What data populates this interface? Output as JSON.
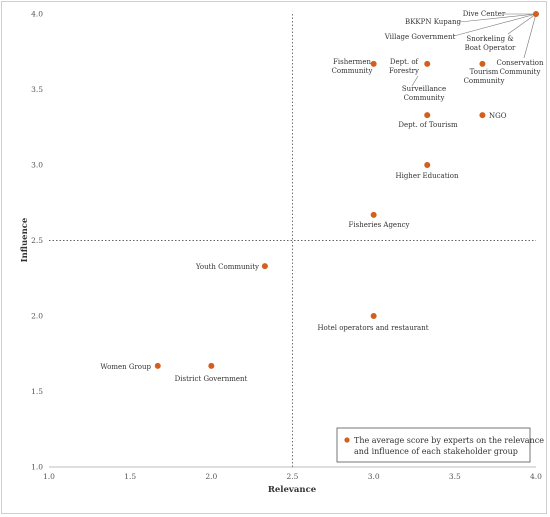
{
  "chart_data": {
    "type": "scatter",
    "title": "",
    "xlabel": "Relevance",
    "ylabel": "Influence",
    "xlim": [
      1.0,
      4.0
    ],
    "ylim": [
      1.0,
      4.0
    ],
    "x_ticks": [
      "1.0",
      "1.5",
      "2.0",
      "2.5",
      "3.0",
      "3.5",
      "4.0"
    ],
    "y_ticks": [
      "1.0",
      "1.5",
      "2.0",
      "2.5",
      "3.0",
      "3.5",
      "4.0"
    ],
    "quadrant_lines": {
      "x": 2.5,
      "y": 2.5
    },
    "grid": false,
    "marker_color": "#d35f1c",
    "legend": {
      "position": "bottom-right",
      "text": "The average score by experts on the relevance and influence of each stakeholder group"
    },
    "points": [
      {
        "label": "Dive Center",
        "x": 4.0,
        "y": 4.0
      },
      {
        "label": "BKKPN Kupang",
        "x": 4.0,
        "y": 4.0
      },
      {
        "label": "Village Government",
        "x": 4.0,
        "y": 4.0
      },
      {
        "label": "Snorkeling & Boat Operator",
        "x": 4.0,
        "y": 4.0
      },
      {
        "label": "Conservation Community",
        "x": 4.0,
        "y": 4.0
      },
      {
        "label": "Fishermen Community",
        "x": 3.0,
        "y": 3.67
      },
      {
        "label": "Dept. of Forestry",
        "x": 3.33,
        "y": 3.67
      },
      {
        "label": "Tourism Community",
        "x": 3.67,
        "y": 3.67
      },
      {
        "label": "Surveillance Community",
        "x": 3.33,
        "y": 3.67
      },
      {
        "label": "Dept. of Tourism",
        "x": 3.33,
        "y": 3.33
      },
      {
        "label": "NGO",
        "x": 3.67,
        "y": 3.33
      },
      {
        "label": "Higher Education",
        "x": 3.33,
        "y": 3.0
      },
      {
        "label": "Fisheries Agency",
        "x": 3.0,
        "y": 2.67
      },
      {
        "label": "Youth Community",
        "x": 2.33,
        "y": 2.33
      },
      {
        "label": "Hotel operators and restaurant",
        "x": 3.0,
        "y": 2.0
      },
      {
        "label": "Women Group",
        "x": 1.67,
        "y": 1.67
      },
      {
        "label": "District Government",
        "x": 2.0,
        "y": 1.67
      }
    ]
  }
}
